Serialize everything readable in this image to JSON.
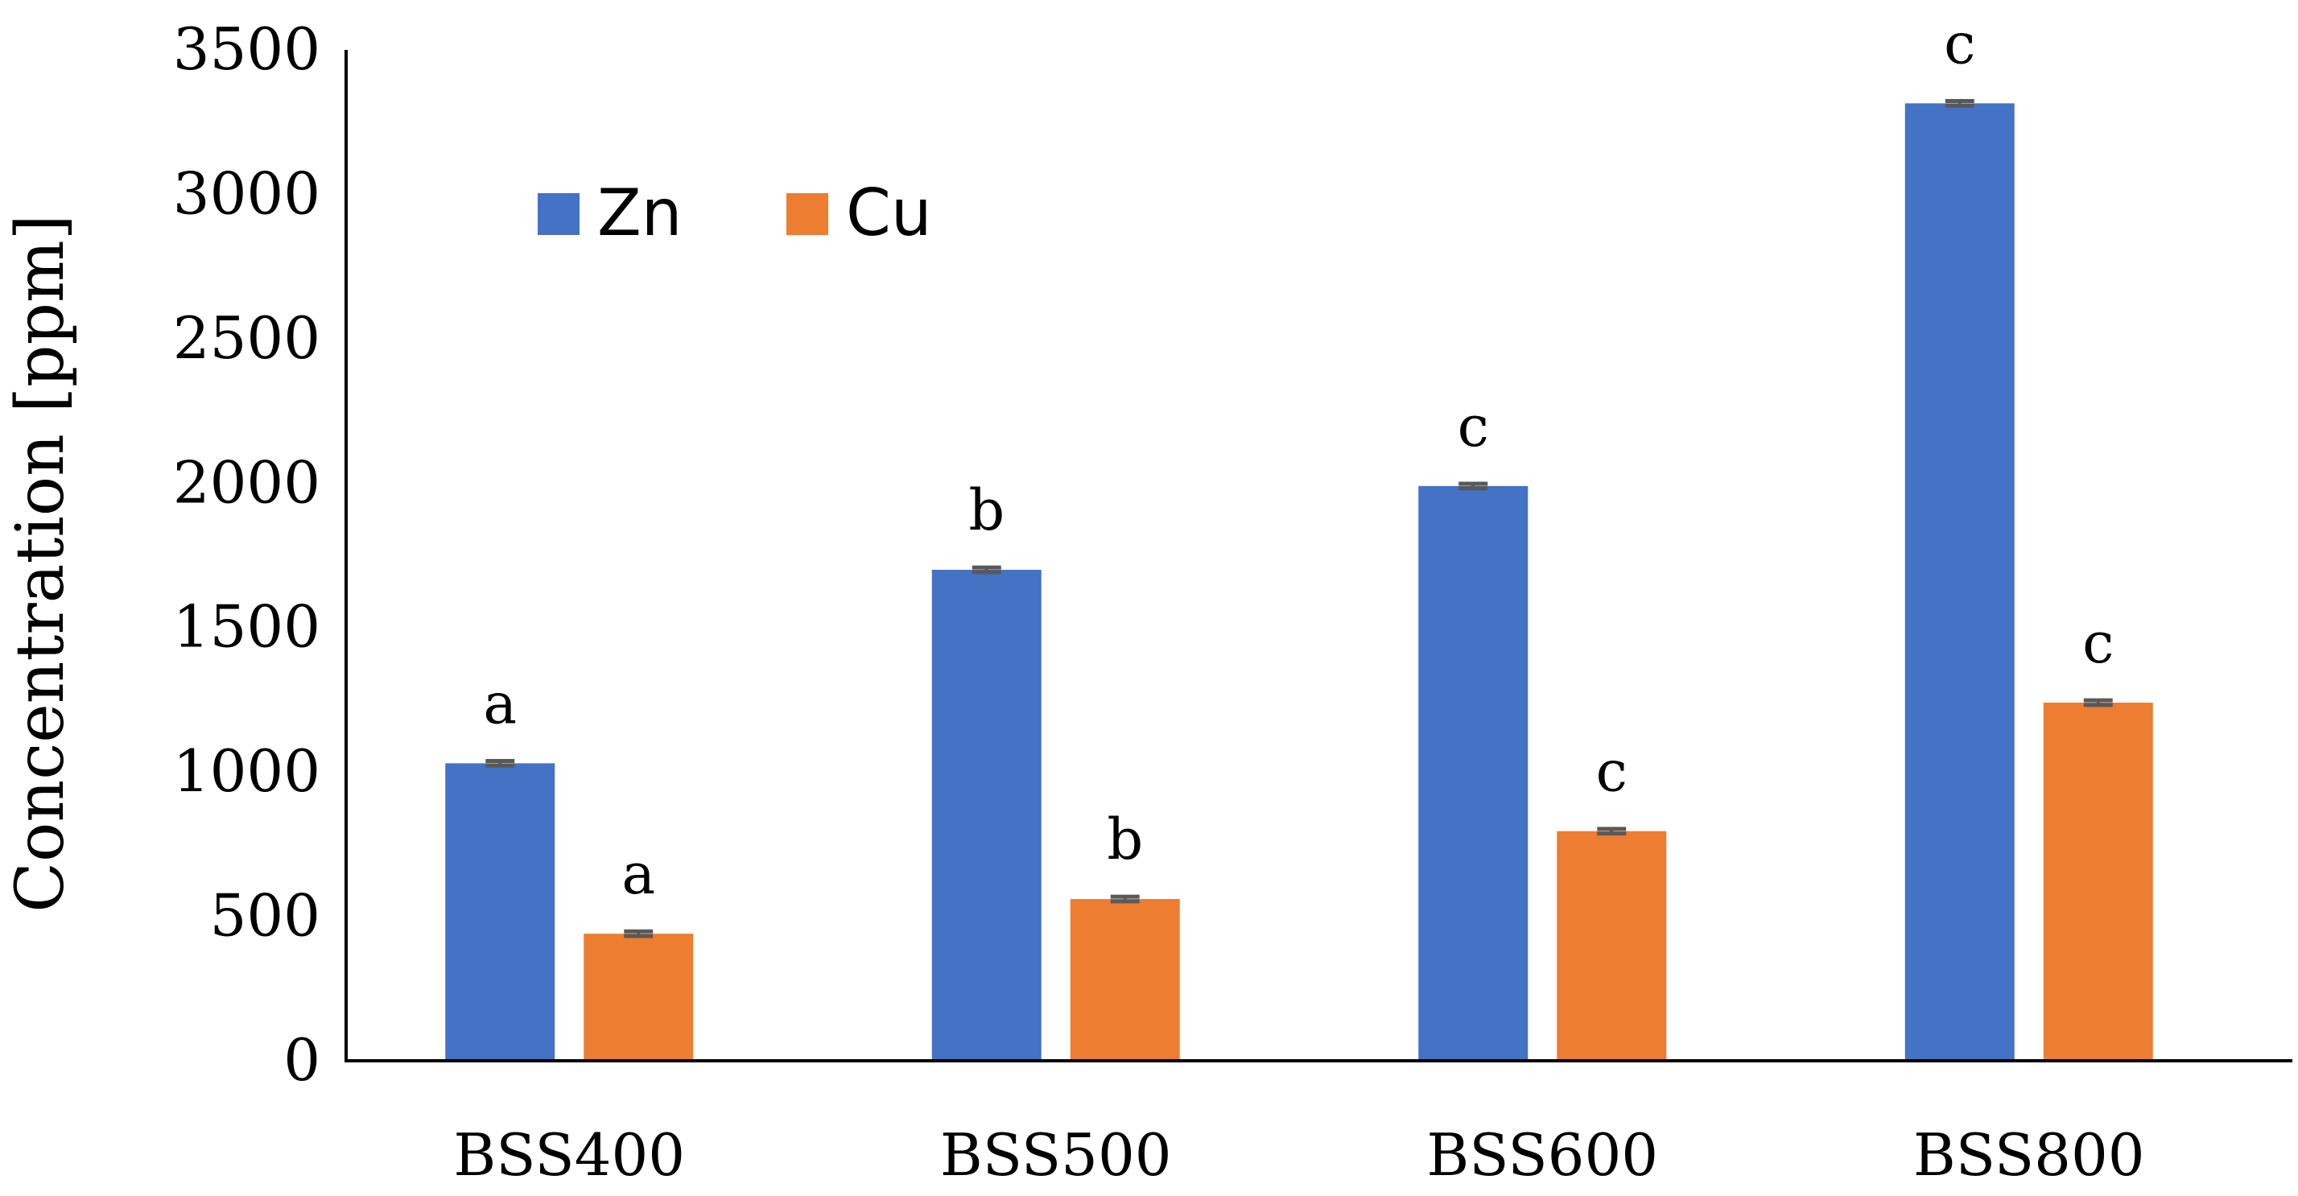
{
  "chart_data": {
    "type": "bar",
    "title": "",
    "xlabel": "",
    "ylabel": "Concentration [ppm]",
    "ylim": [
      0,
      3500
    ],
    "yticks": [
      0,
      500,
      1000,
      1500,
      2000,
      2500,
      3000,
      3500
    ],
    "ytick_labels": [
      "0",
      "500",
      "1000",
      "1500",
      "2000",
      "2500",
      "3000",
      "3500"
    ],
    "categories": [
      "BSS400",
      "BSS500",
      "BSS600",
      "BSS800"
    ],
    "legend_position": "top-left",
    "grid": false,
    "series": [
      {
        "name": "Zn",
        "color": "#4472C4",
        "values": [
          1030,
          1700,
          1990,
          3315
        ],
        "errors": [
          8,
          8,
          8,
          8
        ],
        "significance": [
          "a",
          "b",
          "c",
          "c"
        ]
      },
      {
        "name": "Cu",
        "color": "#ED7D31",
        "values": [
          440,
          560,
          795,
          1240
        ],
        "errors": [
          8,
          8,
          8,
          8
        ],
        "significance": [
          "a",
          "b",
          "c",
          "c"
        ]
      }
    ],
    "errorbar_color": "#595959"
  }
}
